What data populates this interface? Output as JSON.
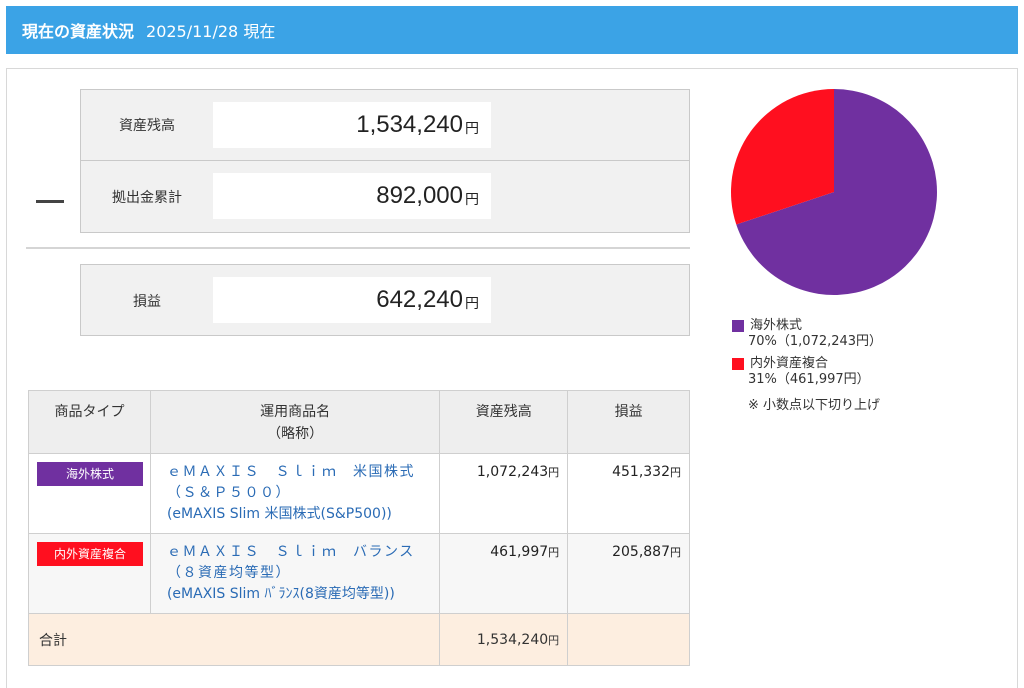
{
  "header": {
    "title": "現在の資産状況",
    "date": "2025/11/28 現在"
  },
  "summary": {
    "balance": {
      "label": "資産残高",
      "value": "1,534,240",
      "unit": "円"
    },
    "contribution": {
      "label": "拠出金累計",
      "value": "892,000",
      "unit": "円"
    },
    "profit": {
      "label": "損益",
      "value": "642,240",
      "unit": "円"
    }
  },
  "chart_data": {
    "type": "pie",
    "slices": [
      {
        "name": "海外株式",
        "value": 1072243,
        "percent_label": "70%",
        "amount_label": "1,072,243円",
        "color": "#7030a0"
      },
      {
        "name": "内外資産複合",
        "value": 461997,
        "percent_label": "31%",
        "amount_label": "461,997円",
        "color": "#ff0f1f"
      }
    ]
  },
  "legend": {
    "items": [
      {
        "name": "海外株式",
        "detail": "70%（1,072,243円）"
      },
      {
        "name": "内外資産複合",
        "detail": "31%（461,997円）"
      }
    ],
    "note": "※ 小数点以下切り上げ"
  },
  "table": {
    "headers": {
      "type": "商品タイプ",
      "product_line1": "運用商品名",
      "product_line2": "（略称）",
      "balance": "資産残高",
      "profit": "損益"
    },
    "rows": [
      {
        "type": "海外株式",
        "type_color": "#7030a0",
        "name_line1": "ｅＭＡＸＩＳ　Ｓｌｉｍ　米国株式",
        "name_line2": "（Ｓ＆Ｐ５００）",
        "abbr": "(eMAXIS Slim 米国株式(S&P500))",
        "balance": "1,072,243",
        "profit": "451,332",
        "unit": "円"
      },
      {
        "type": "内外資産複合",
        "type_color": "#ff0f1f",
        "name_line1": "ｅＭＡＸＩＳ　Ｓｌｉｍ　バランス",
        "name_line2": "（８資産均等型）",
        "abbr": "(eMAXIS Slim ﾊﾞﾗﾝｽ(8資産均等型))",
        "balance": "461,997",
        "profit": "205,887",
        "unit": "円"
      }
    ],
    "total": {
      "label": "合計",
      "balance": "1,534,240",
      "unit": "円"
    }
  }
}
